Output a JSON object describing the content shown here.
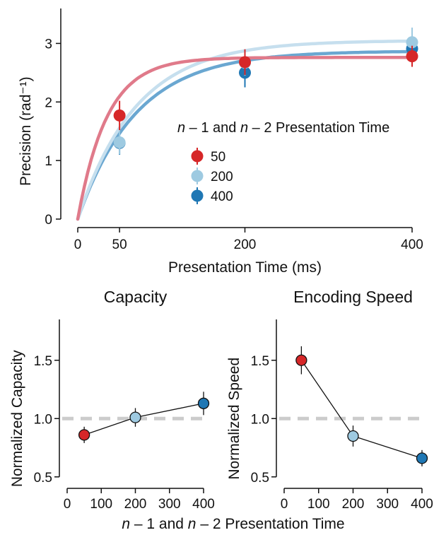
{
  "chart_data": [
    {
      "type": "scatter",
      "xlabel": "Presentation Time (ms)",
      "ylabel": "Precision (rad⁻¹)",
      "xlim": [
        0,
        400
      ],
      "ylim": [
        0,
        3.5
      ],
      "x_ticks": [
        "0",
        "50",
        "200",
        "400"
      ],
      "x_tick_values": [
        0,
        50,
        200,
        400
      ],
      "y_ticks": [
        "0",
        "1",
        "2",
        "3"
      ],
      "y_tick_values": [
        0,
        1,
        2,
        3
      ],
      "legend": {
        "title_parts": [
          "n",
          " – 1 and ",
          "n",
          " – 2 Presentation Time"
        ],
        "placement": "center-right"
      },
      "series": [
        {
          "name": "50",
          "color": "#d62728",
          "curve_color": "#e07a8a",
          "x": [
            50,
            200,
            400
          ],
          "y": [
            1.77,
            2.68,
            2.78
          ],
          "err": [
            0.25,
            0.22,
            0.18
          ],
          "fit": {
            "asymptote": 2.76,
            "tau": 35
          }
        },
        {
          "name": "200",
          "color": "#9ecae1",
          "curve_color": "#c6dfee",
          "x": [
            50,
            200,
            400
          ],
          "y": [
            1.31,
            2.67,
            3.02
          ],
          "err": [
            0.2,
            0.22,
            0.25
          ],
          "fit": {
            "asymptote": 3.05,
            "tau": 70
          }
        },
        {
          "name": "400",
          "color": "#1f77b4",
          "curve_color": "#6aa7d1",
          "x": [
            50,
            200,
            400
          ],
          "y": [
            1.3,
            2.5,
            2.91
          ],
          "err": [
            0.2,
            0.25,
            0.2
          ],
          "fit": {
            "asymptote": 2.87,
            "tau": 70
          }
        }
      ]
    },
    {
      "type": "line",
      "title": "Capacity",
      "ylabel": "Normalized Capacity",
      "xlim": [
        0,
        400
      ],
      "ylim": [
        0.45,
        1.85
      ],
      "x_ticks": [
        "0",
        "100",
        "200",
        "300",
        "400"
      ],
      "x_tick_values": [
        0,
        100,
        200,
        300,
        400
      ],
      "y_ticks": [
        "0.5",
        "1.0",
        "1.5"
      ],
      "y_tick_values": [
        0.5,
        1.0,
        1.5
      ],
      "reference_line": 1.0,
      "x": [
        50,
        200,
        400
      ],
      "y": [
        0.86,
        1.01,
        1.13
      ],
      "err": [
        0.07,
        0.08,
        0.1
      ],
      "point_colors": [
        "#d62728",
        "#9ecae1",
        "#1f77b4"
      ]
    },
    {
      "type": "line",
      "title": "Encoding Speed",
      "ylabel": "Normalized Speed",
      "xlim": [
        0,
        400
      ],
      "ylim": [
        0.45,
        1.85
      ],
      "x_ticks": [
        "0",
        "100",
        "200",
        "300",
        "400"
      ],
      "x_tick_values": [
        0,
        100,
        200,
        300,
        400
      ],
      "y_ticks": [
        "0.5",
        "1.0",
        "1.5"
      ],
      "y_tick_values": [
        0.5,
        1.0,
        1.5
      ],
      "reference_line": 1.0,
      "x": [
        50,
        200,
        400
      ],
      "y": [
        1.5,
        0.85,
        0.66
      ],
      "err": [
        0.12,
        0.09,
        0.07
      ],
      "point_colors": [
        "#d62728",
        "#9ecae1",
        "#1f77b4"
      ]
    }
  ],
  "shared_xlabel_parts": [
    "n",
    " – 1 and ",
    "n",
    " – 2 Presentation Time"
  ]
}
